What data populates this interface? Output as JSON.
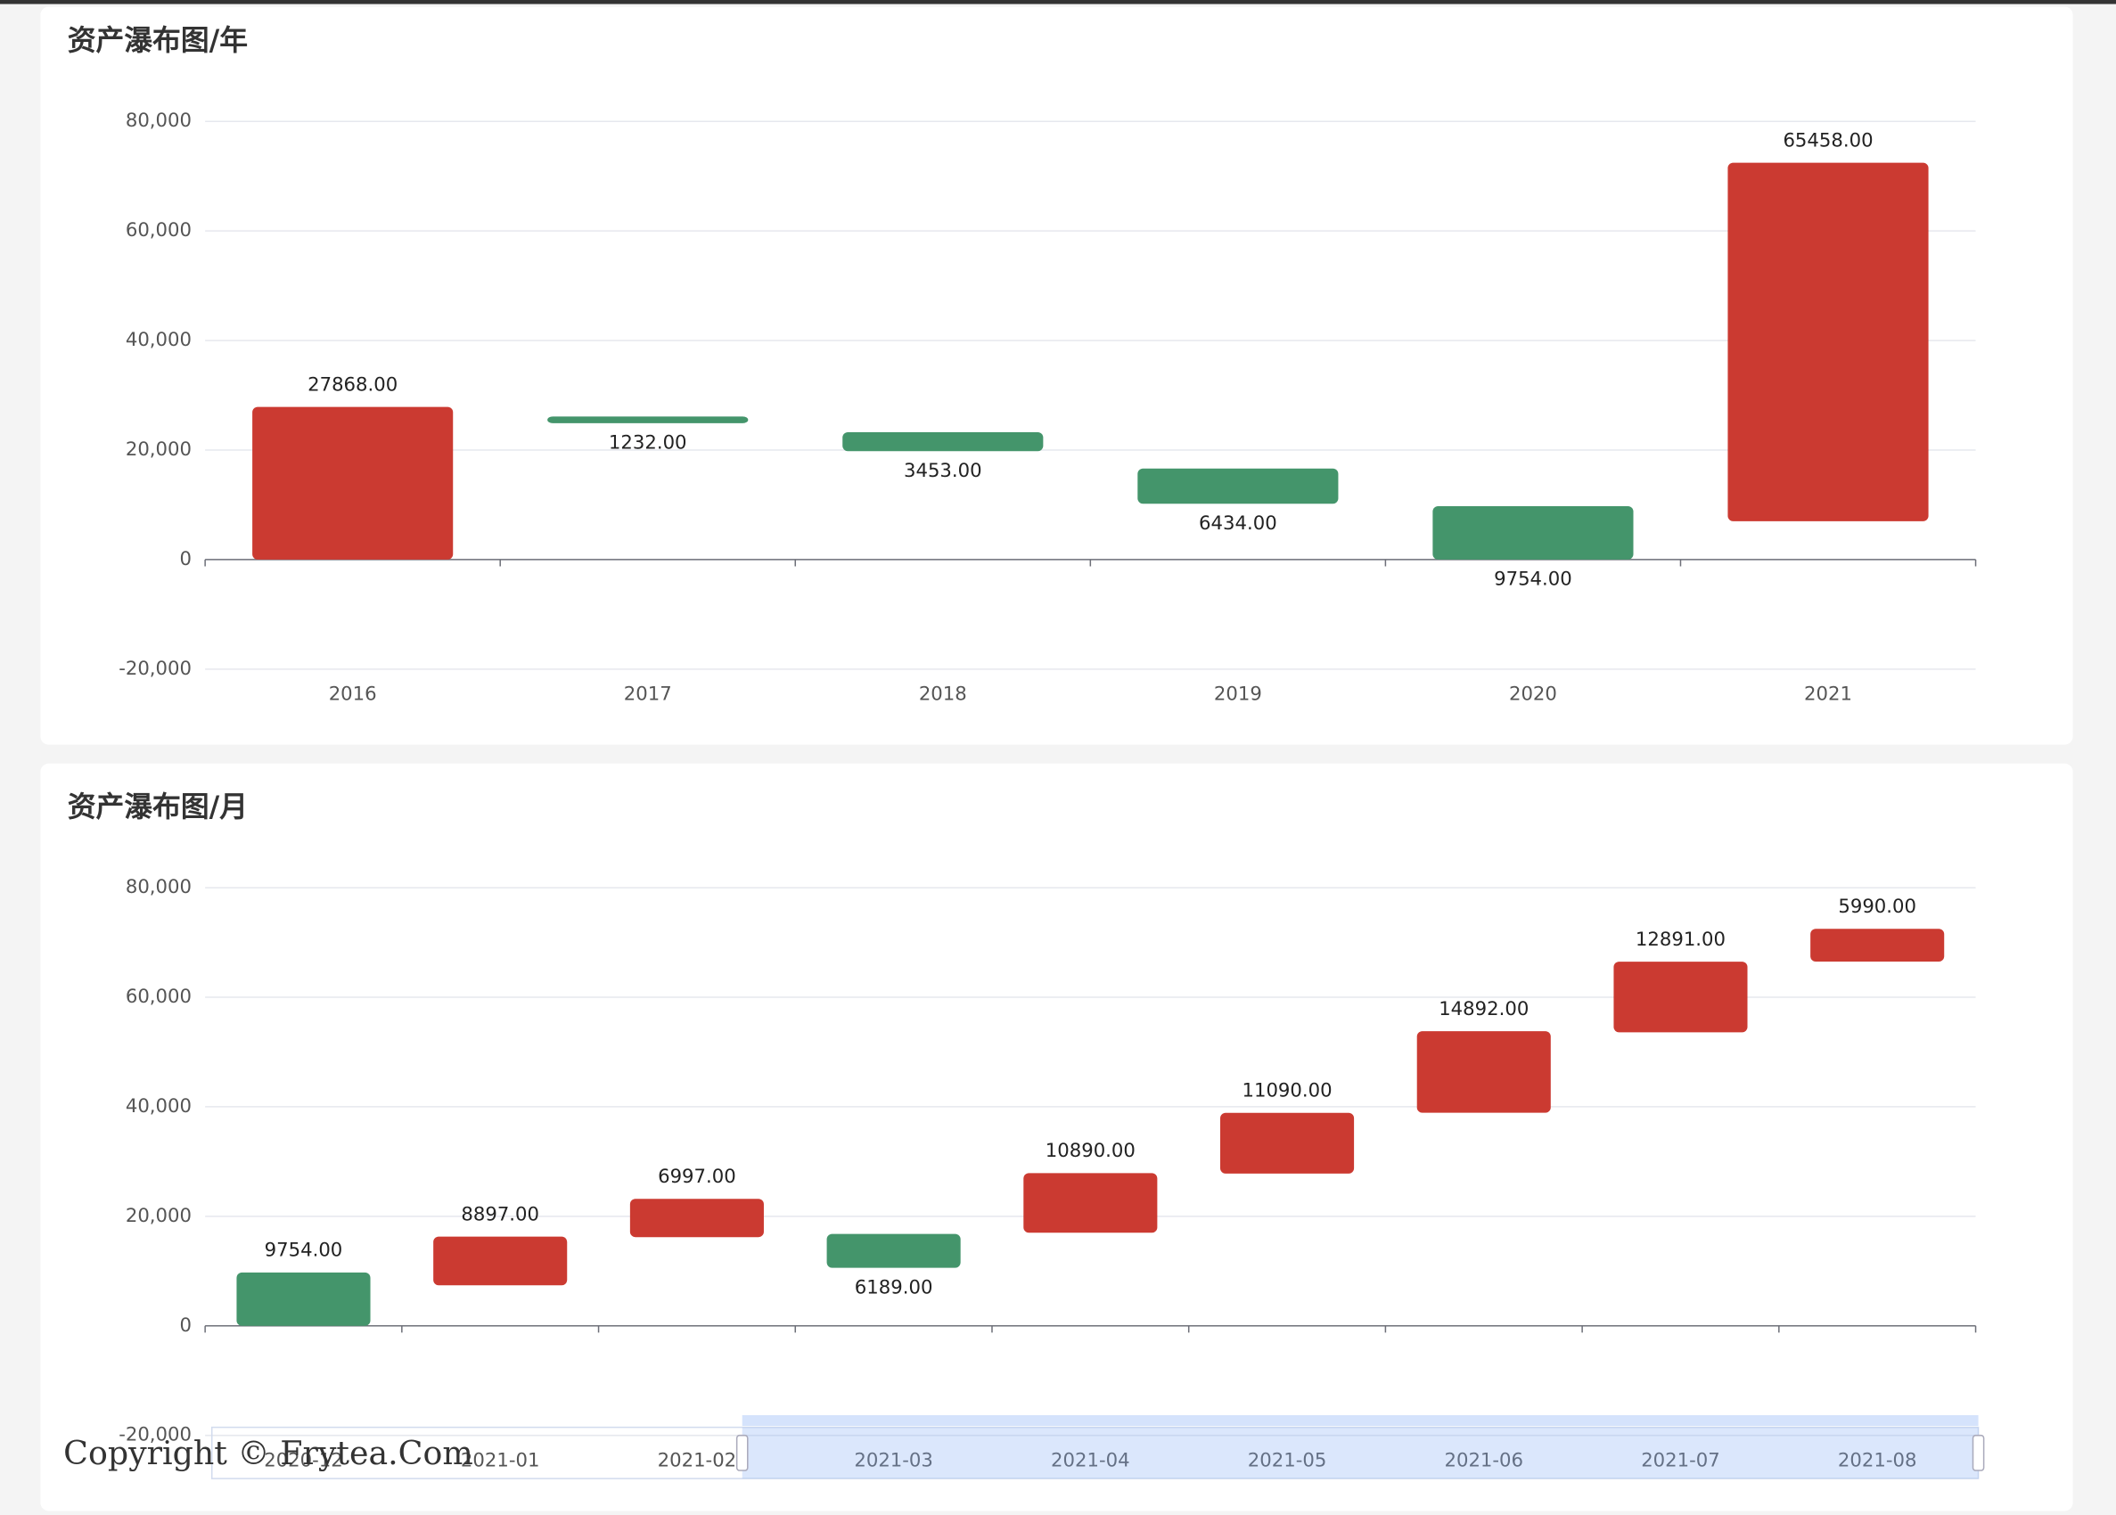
{
  "chart_data": [
    {
      "type": "waterfall",
      "title": "资产瀑布图/年",
      "categories": [
        "2016",
        "2017",
        "2018",
        "2019",
        "2020",
        "2021"
      ],
      "values": [
        27868,
        1232,
        3453,
        6434,
        9754,
        65458
      ],
      "value_labels": [
        "27868.00",
        "1232.00",
        "3453.00",
        "6434.00",
        "9754.00",
        "65458.00"
      ],
      "bases": [
        0,
        24900,
        19800,
        10200,
        0,
        7000
      ],
      "colors": [
        "#cb3a31",
        "#44956b",
        "#44956b",
        "#44956b",
        "#44956b",
        "#cb3a31"
      ],
      "ylim": [
        -20000,
        80000
      ],
      "yticks": [
        {
          "value": -20000,
          "label": "-20,000"
        },
        0,
        {
          "value": 20000,
          "label": "20,000"
        },
        {
          "value": 40000,
          "label": "40,000"
        },
        {
          "value": 60000,
          "label": "60,000"
        },
        {
          "value": 80000,
          "label": "80,000"
        }
      ],
      "grid": true
    },
    {
      "type": "waterfall",
      "title": "资产瀑布图/月",
      "categories": [
        "2020-12",
        "2021-01",
        "2021-02",
        "2021-03",
        "2021-04",
        "2021-05",
        "2021-06",
        "2021-07",
        "2021-08"
      ],
      "values": [
        9754,
        8897,
        6997,
        6189,
        10890,
        11090,
        14892,
        12891,
        5990
      ],
      "value_labels": [
        "9754.00",
        "8897.00",
        "6997.00",
        "6189.00",
        "10890.00",
        "11090.00",
        "14892.00",
        "12891.00",
        "5990.00"
      ],
      "bases": [
        0,
        7400,
        16200,
        10600,
        17000,
        27800,
        38900,
        53600,
        66500
      ],
      "colors": [
        "#44956b",
        "#cb3a31",
        "#cb3a31",
        "#44956b",
        "#cb3a31",
        "#cb3a31",
        "#cb3a31",
        "#cb3a31",
        "#cb3a31"
      ],
      "ylim": [
        -20000,
        80000
      ],
      "yticks": [
        {
          "value": -20000,
          "label": "-20,000"
        },
        0,
        {
          "value": 20000,
          "label": "20,000"
        },
        {
          "value": 40000,
          "label": "40,000"
        },
        {
          "value": 60000,
          "label": "60,000"
        },
        {
          "value": 80000,
          "label": "80,000"
        }
      ],
      "grid": true,
      "data_zoom": true,
      "watermark": "Copyright © Frytea.Com"
    }
  ]
}
